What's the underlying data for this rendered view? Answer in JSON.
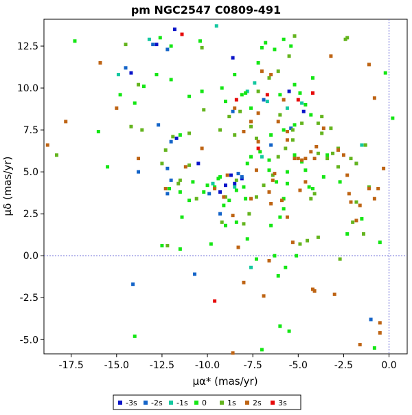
{
  "chart_data": {
    "type": "scatter",
    "title": "pm NGC2547  C0809-491",
    "xlabel": "μα* (mas/yr)",
    "ylabel": "μδ (mas/yr)",
    "xlim": [
      -19.0,
      1.0
    ],
    "ylim": [
      -5.85,
      14.1
    ],
    "x_ticks": [
      {
        "value": -17.5,
        "label": "-17.5"
      },
      {
        "value": -15.0,
        "label": "-15.0"
      },
      {
        "value": -12.5,
        "label": "-12.5"
      },
      {
        "value": -10.0,
        "label": "-10.0"
      },
      {
        "value": -7.5,
        "label": "-7.5"
      },
      {
        "value": -5.0,
        "label": "-5.0"
      },
      {
        "value": -2.5,
        "label": "-2.5"
      },
      {
        "value": 0.0,
        "label": "0.0"
      }
    ],
    "y_ticks": [
      {
        "value": -5.0,
        "label": "-5.0"
      },
      {
        "value": -2.5,
        "label": "-2.5"
      },
      {
        "value": 0.0,
        "label": "0.0"
      },
      {
        "value": 2.5,
        "label": "2.5"
      },
      {
        "value": 5.0,
        "label": "5.0"
      },
      {
        "value": 7.5,
        "label": "7.5"
      },
      {
        "value": 10.0,
        "label": "10.0"
      },
      {
        "value": 12.5,
        "label": "12.5"
      }
    ],
    "reference_lines": [
      {
        "axis": "x",
        "value": 0.0,
        "color": "#5b5bd6",
        "style": "dashed"
      },
      {
        "axis": "y",
        "value": 0.0,
        "color": "#5b5bd6",
        "style": "dashed"
      }
    ],
    "grid": false,
    "legend_position": "bottom-center",
    "series": [
      {
        "name": "-3s",
        "color": "#0a14c8",
        "points": [
          [
            -11.8,
            13.5
          ],
          [
            -12.8,
            12.6
          ],
          [
            -8.6,
            11.8
          ],
          [
            -14.2,
            10.9
          ],
          [
            -11.7,
            7.0
          ],
          [
            -10.5,
            5.5
          ],
          [
            -9.3,
            3.8
          ],
          [
            -9.0,
            4.2
          ],
          [
            -8.5,
            4.3
          ],
          [
            -8.1,
            4.6
          ],
          [
            -8.7,
            4.8
          ],
          [
            -5.5,
            9.8
          ],
          [
            -4.7,
            8.6
          ]
        ]
      },
      {
        "name": "-2s",
        "color": "#1464c8",
        "points": [
          [
            -13.0,
            12.6
          ],
          [
            -12.2,
            12.3
          ],
          [
            -14.5,
            11.2
          ],
          [
            -12.7,
            7.8
          ],
          [
            -12.0,
            6.8
          ],
          [
            -12.2,
            5.2
          ],
          [
            -12.0,
            4.5
          ],
          [
            -12.2,
            3.7
          ],
          [
            -13.8,
            5.0
          ],
          [
            -9.9,
            3.7
          ],
          [
            -9.3,
            2.5
          ],
          [
            -10.7,
            -1.1
          ],
          [
            -14.1,
            -1.7
          ],
          [
            -8.6,
            8.6
          ],
          [
            -6.9,
            9.3
          ],
          [
            -5.4,
            7.6
          ],
          [
            -6.5,
            6.6
          ],
          [
            -8.1,
            4.7
          ],
          [
            -8.3,
            4.9
          ],
          [
            -1.8,
            5.5
          ],
          [
            -1.0,
            -3.8
          ]
        ]
      },
      {
        "name": "-1s",
        "color": "#14c8a0",
        "points": [
          [
            -14.9,
            10.8
          ],
          [
            -13.2,
            12.9
          ],
          [
            -9.5,
            13.7
          ],
          [
            -7.4,
            10.3
          ],
          [
            -6.7,
            9.2
          ],
          [
            -7.8,
            9.8
          ],
          [
            -4.8,
            9.1
          ],
          [
            -5.6,
            8.8
          ],
          [
            -1.5,
            6.6
          ],
          [
            -7.0,
            5.9
          ],
          [
            -9.7,
            4.3
          ],
          [
            -8.5,
            4.1
          ],
          [
            -7.6,
            -0.7
          ]
        ]
      },
      {
        "name": "0",
        "color": "#14e614",
        "points": [
          [
            -17.3,
            12.8
          ],
          [
            -16.0,
            7.4
          ],
          [
            -15.5,
            5.3
          ],
          [
            -14.8,
            9.6
          ],
          [
            -14.0,
            9.1
          ],
          [
            -13.5,
            10.1
          ],
          [
            -12.8,
            10.8
          ],
          [
            -12.0,
            10.5
          ],
          [
            -12.0,
            12.5
          ],
          [
            -12.6,
            13.0
          ],
          [
            -11.5,
            7.2
          ],
          [
            -11.0,
            9.5
          ],
          [
            -10.3,
            9.8
          ],
          [
            -10.4,
            12.8
          ],
          [
            -9.2,
            10.0
          ],
          [
            -9.0,
            9.2
          ],
          [
            -8.5,
            10.8
          ],
          [
            -8.1,
            9.6
          ],
          [
            -7.9,
            9.7
          ],
          [
            -7.6,
            8.8
          ],
          [
            -7.2,
            11.5
          ],
          [
            -7.0,
            12.4
          ],
          [
            -6.8,
            12.7
          ],
          [
            -6.3,
            12.3
          ],
          [
            -5.8,
            12.9
          ],
          [
            -5.4,
            12.5
          ],
          [
            -5.2,
            10.2
          ],
          [
            -4.9,
            9.7
          ],
          [
            -4.6,
            9.0
          ],
          [
            -4.3,
            8.4
          ],
          [
            -4.2,
            10.6
          ],
          [
            -6.0,
            9.6
          ],
          [
            -6.5,
            7.2
          ],
          [
            -5.8,
            7.5
          ],
          [
            -5.2,
            6.0
          ],
          [
            -4.8,
            5.6
          ],
          [
            -4.6,
            5.1
          ],
          [
            -4.2,
            4.0
          ],
          [
            -5.6,
            4.3
          ],
          [
            -5.8,
            2.8
          ],
          [
            -6.0,
            2.3
          ],
          [
            -6.5,
            1.8
          ],
          [
            -6.3,
            0.0
          ],
          [
            -7.8,
            1.0
          ],
          [
            -7.3,
            -0.2
          ],
          [
            -5.7,
            -0.7
          ],
          [
            -7.9,
            3.4
          ],
          [
            -8.4,
            2.0
          ],
          [
            -9.0,
            1.8
          ],
          [
            -9.6,
            4.1
          ],
          [
            -10.2,
            3.8
          ],
          [
            -10.8,
            4.4
          ],
          [
            -11.5,
            3.8
          ],
          [
            -11.0,
            3.3
          ],
          [
            -12.1,
            4.0
          ],
          [
            -11.4,
            2.3
          ],
          [
            -12.5,
            0.6
          ],
          [
            -11.5,
            0.4
          ],
          [
            -9.4,
            4.6
          ],
          [
            -9.1,
            3.0
          ],
          [
            -8.8,
            3.3
          ],
          [
            -8.4,
            3.9
          ],
          [
            -8.0,
            4.1
          ],
          [
            -7.8,
            5.5
          ],
          [
            -7.1,
            6.2
          ],
          [
            -6.6,
            5.1
          ],
          [
            -6.2,
            4.4
          ],
          [
            -5.6,
            5.0
          ],
          [
            -3.6,
            4.7
          ],
          [
            -3.4,
            6.0
          ],
          [
            -2.7,
            4.4
          ],
          [
            -2.3,
            1.3
          ],
          [
            -1.5,
            2.2
          ],
          [
            -1.3,
            6.6
          ],
          [
            -0.5,
            0.8
          ],
          [
            -0.2,
            10.9
          ],
          [
            0.2,
            8.2
          ],
          [
            -4.4,
            4.1
          ],
          [
            -5.8,
            3.4
          ],
          [
            -6.1,
            -1.2
          ],
          [
            -5.1,
            0.0
          ],
          [
            -6.0,
            -4.2
          ],
          [
            -5.5,
            -4.5
          ],
          [
            -7.0,
            -5.6
          ],
          [
            -0.8,
            -5.5
          ],
          [
            -9.8,
            0.7
          ],
          [
            -9.3,
            4.7
          ],
          [
            -10.0,
            4.2
          ],
          [
            -14.0,
            -4.8
          ],
          [
            -7.6,
            5.9
          ],
          [
            -6.6,
            5.7
          ],
          [
            -5.2,
            7.8
          ]
        ]
      },
      {
        "name": "1s",
        "color": "#64b41e",
        "points": [
          [
            -18.3,
            6.0
          ],
          [
            -14.5,
            12.6
          ],
          [
            -13.8,
            10.2
          ],
          [
            -13.6,
            7.5
          ],
          [
            -14.2,
            7.7
          ],
          [
            -11.9,
            7.1
          ],
          [
            -12.3,
            6.3
          ],
          [
            -11.5,
            4.5
          ],
          [
            -11.0,
            5.4
          ],
          [
            -11.0,
            7.3
          ],
          [
            -10.2,
            8.7
          ],
          [
            -10.3,
            12.4
          ],
          [
            -9.3,
            7.5
          ],
          [
            -8.8,
            8.3
          ],
          [
            -8.2,
            8.6
          ],
          [
            -8.5,
            7.2
          ],
          [
            -7.6,
            7.7
          ],
          [
            -7.3,
            7.0
          ],
          [
            -7.2,
            9.8
          ],
          [
            -6.6,
            10.6
          ],
          [
            -6.1,
            11.0
          ],
          [
            -5.5,
            11.9
          ],
          [
            -5.2,
            13.1
          ],
          [
            -3.9,
            7.9
          ],
          [
            -3.7,
            7.3
          ],
          [
            -3.4,
            5.8
          ],
          [
            -3.1,
            6.1
          ],
          [
            -2.8,
            5.3
          ],
          [
            -2.4,
            12.9
          ],
          [
            -2.3,
            13.0
          ],
          [
            -2.1,
            5.8
          ],
          [
            -1.8,
            5.5
          ],
          [
            -1.3,
            6.6
          ],
          [
            -1.1,
            4.1
          ],
          [
            -1.8,
            3.2
          ],
          [
            -2.0,
            2.0
          ],
          [
            -1.4,
            1.3
          ],
          [
            -2.7,
            -0.2
          ],
          [
            -3.9,
            1.1
          ],
          [
            -4.5,
            0.9
          ],
          [
            -4.9,
            0.7
          ],
          [
            -6.1,
            5.9
          ],
          [
            -6.4,
            4.8
          ],
          [
            -6.9,
            4.2
          ],
          [
            -7.3,
            3.5
          ],
          [
            -7.7,
            2.5
          ],
          [
            -8.4,
            4.5
          ],
          [
            -9.0,
            3.5
          ],
          [
            -9.2,
            2.0
          ],
          [
            -8.0,
            1.9
          ],
          [
            -12.2,
            0.6
          ],
          [
            -11.6,
            4.3
          ],
          [
            -12.5,
            5.5
          ],
          [
            -10.6,
            3.4
          ],
          [
            -4.3,
            3.4
          ],
          [
            -4.1,
            3.7
          ],
          [
            -3.2,
            7.6
          ],
          [
            -3.7,
            8.3
          ],
          [
            -4.8,
            7.9
          ],
          [
            -5.3,
            6.9
          ],
          [
            -6.0,
            8.4
          ],
          [
            -5.7,
            6.4
          ],
          [
            -5.3,
            7.5
          ],
          [
            -2.8,
            6.4
          ],
          [
            -3.9,
            6.1
          ]
        ]
      },
      {
        "name": "2s",
        "color": "#be6414",
        "points": [
          [
            -18.8,
            6.6
          ],
          [
            -17.8,
            8.0
          ],
          [
            -15.9,
            11.5
          ],
          [
            -15.0,
            8.8
          ],
          [
            -13.8,
            5.8
          ],
          [
            -12.3,
            4.0
          ],
          [
            -11.2,
            5.3
          ],
          [
            -10.3,
            6.4
          ],
          [
            -8.5,
            8.8
          ],
          [
            -8.0,
            7.4
          ],
          [
            -7.6,
            8.0
          ],
          [
            -7.2,
            8.5
          ],
          [
            -6.5,
            10.8
          ],
          [
            -6.1,
            8.0
          ],
          [
            -5.8,
            9.3
          ],
          [
            -5.6,
            7.4
          ],
          [
            -5.2,
            5.8
          ],
          [
            -4.8,
            5.7
          ],
          [
            -4.6,
            5.8
          ],
          [
            -4.0,
            6.5
          ],
          [
            -3.6,
            7.6
          ],
          [
            -2.8,
            6.3
          ],
          [
            -2.5,
            6.0
          ],
          [
            -2.3,
            4.8
          ],
          [
            -2.2,
            3.7
          ],
          [
            -2.1,
            3.2
          ],
          [
            -1.6,
            3.0
          ],
          [
            -1.8,
            2.1
          ],
          [
            -1.1,
            4.0
          ],
          [
            -0.8,
            3.4
          ],
          [
            -0.6,
            4.0
          ],
          [
            -0.3,
            5.2
          ],
          [
            -0.8,
            9.4
          ],
          [
            -1.1,
            11.4
          ],
          [
            -0.5,
            -4.0
          ],
          [
            -0.5,
            -4.6
          ],
          [
            -1.6,
            -5.3
          ],
          [
            -3.0,
            -2.3
          ],
          [
            -4.2,
            -2.0
          ],
          [
            -4.1,
            -2.1
          ],
          [
            -5.6,
            2.3
          ],
          [
            -6.3,
            4.9
          ],
          [
            -7.2,
            6.8
          ],
          [
            -7.6,
            3.4
          ],
          [
            -8.3,
            0.5
          ],
          [
            -8.6,
            2.4
          ],
          [
            -9.1,
            3.5
          ],
          [
            -9.6,
            4.0
          ],
          [
            -6.6,
            -0.3
          ],
          [
            -6.9,
            -2.4
          ],
          [
            -8.0,
            -1.6
          ],
          [
            -8.6,
            -5.8
          ],
          [
            -5.3,
            0.8
          ],
          [
            -4.9,
            3.9
          ],
          [
            -5.9,
            3.3
          ],
          [
            -6.5,
            3.1
          ],
          [
            -4.1,
            5.8
          ],
          [
            -4.6,
            4.4
          ],
          [
            -5.0,
            5.8
          ],
          [
            -5.6,
            6.9
          ],
          [
            -4.3,
            6.2
          ],
          [
            -7.0,
            11.0
          ],
          [
            -3.2,
            11.9
          ],
          [
            -6.4,
            4.5
          ],
          [
            -7.3,
            5.1
          ],
          [
            -8.9,
            4.8
          ],
          [
            -6.6,
            3.8
          ]
        ]
      },
      {
        "name": "3s",
        "color": "#e60a0a",
        "points": [
          [
            -11.4,
            13.2
          ],
          [
            -8.4,
            9.3
          ],
          [
            -6.7,
            9.6
          ],
          [
            -5.0,
            9.3
          ],
          [
            -4.2,
            9.7
          ],
          [
            -7.2,
            6.4
          ],
          [
            -9.6,
            -2.7
          ]
        ]
      }
    ]
  }
}
